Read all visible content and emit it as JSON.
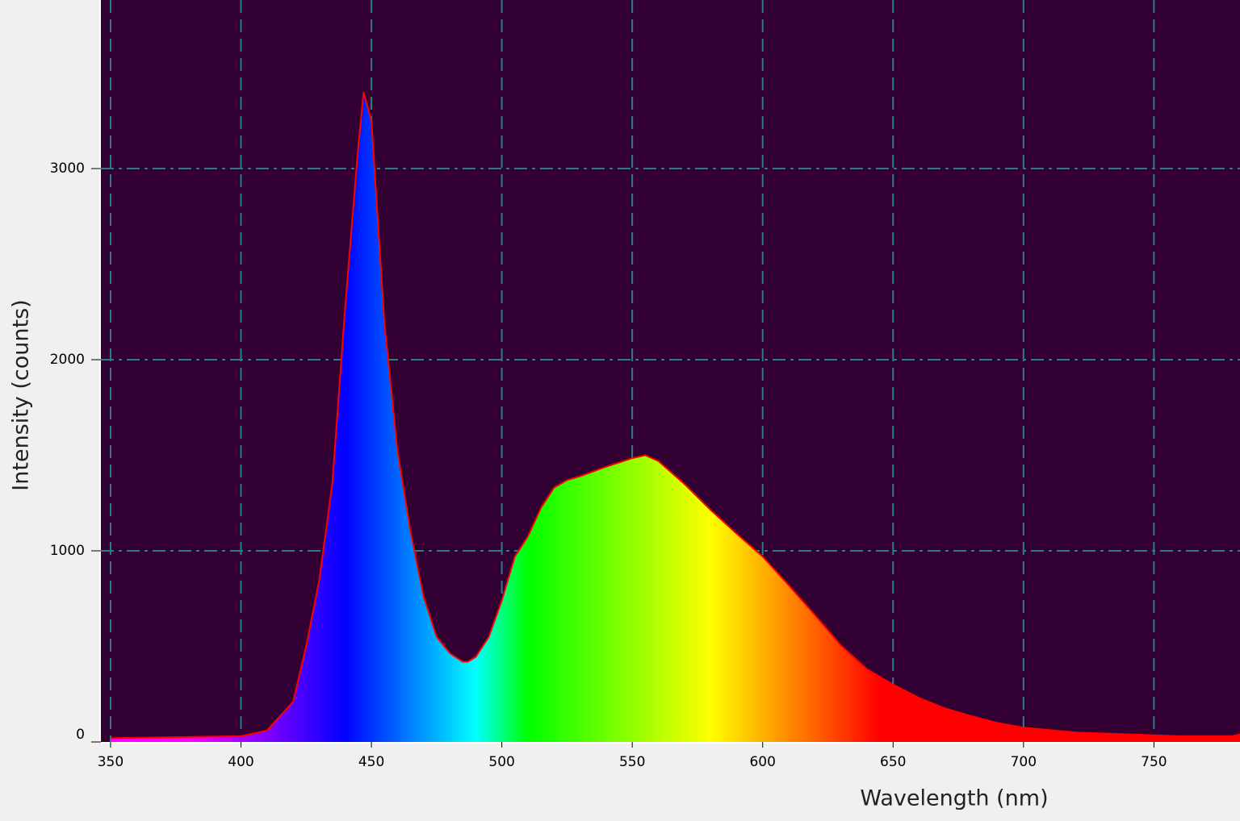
{
  "chart_data": {
    "type": "area",
    "x_label": "Wavelength (nm)",
    "y_label": "Intensity (counts)",
    "x": [
      350,
      400,
      410,
      420,
      425,
      430,
      435,
      440,
      445,
      447,
      450,
      455,
      460,
      465,
      470,
      475,
      480,
      485,
      487,
      490,
      495,
      500,
      505,
      510,
      515,
      520,
      525,
      530,
      540,
      550,
      555,
      560,
      570,
      580,
      590,
      600,
      610,
      620,
      630,
      640,
      650,
      660,
      670,
      680,
      690,
      700,
      720,
      740,
      760,
      780,
      783
    ],
    "values": [
      20,
      30,
      60,
      210,
      500,
      845,
      1350,
      2280,
      3120,
      3400,
      3250,
      2190,
      1520,
      1100,
      760,
      550,
      465,
      420,
      420,
      445,
      550,
      740,
      970,
      1075,
      1225,
      1330,
      1370,
      1390,
      1440,
      1485,
      1500,
      1470,
      1350,
      1215,
      1090,
      970,
      820,
      665,
      505,
      380,
      300,
      230,
      175,
      135,
      100,
      75,
      50,
      40,
      30,
      30,
      40
    ],
    "line_color": "#ff0000",
    "background": "#330033",
    "grid_color": "#2a8080",
    "grid": true,
    "xlim": [
      346.3,
      783
    ],
    "ylim": [
      0,
      3882
    ],
    "xticks": [
      350,
      400,
      450,
      500,
      550,
      600,
      650,
      700,
      750
    ],
    "yticks": [
      0,
      1000,
      2000,
      3000
    ]
  }
}
